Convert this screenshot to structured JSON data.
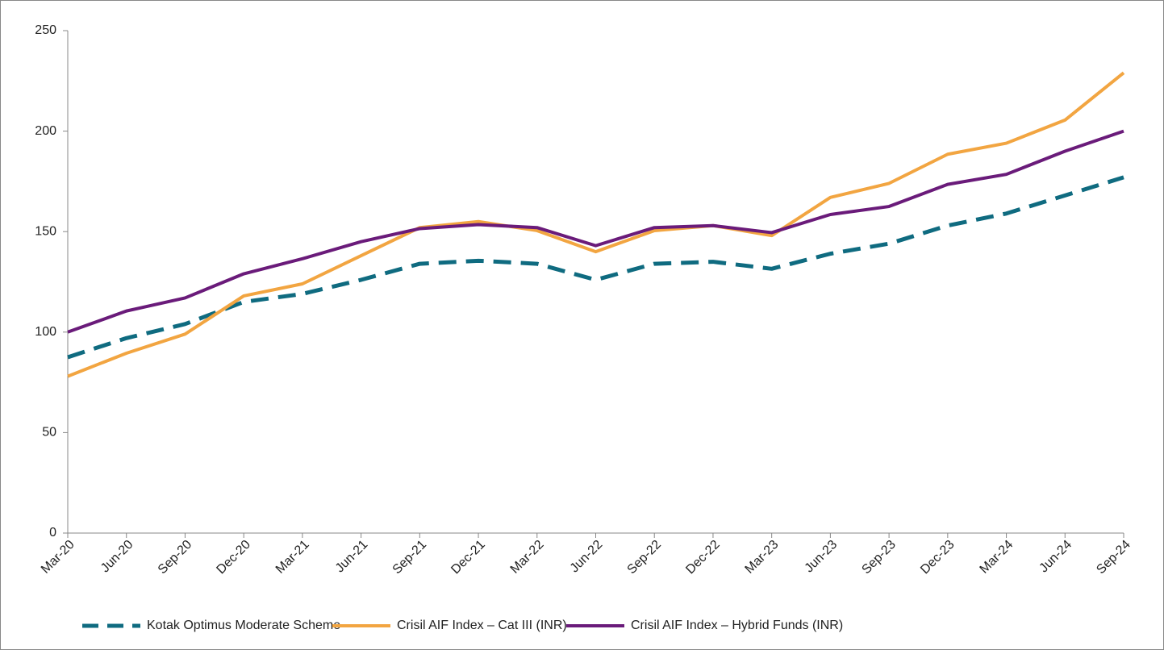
{
  "chart_data": {
    "type": "line",
    "categories": [
      "Mar-20",
      "Jun-20",
      "Sep-20",
      "Dec-20",
      "Mar-21",
      "Jun-21",
      "Sep-21",
      "Dec-21",
      "Mar-22",
      "Jun-22",
      "Sep-22",
      "Dec-22",
      "Mar-23",
      "Jun-23",
      "Sep-23",
      "Dec-23",
      "Mar-24",
      "Jun-24",
      "Sep-24"
    ],
    "series": [
      {
        "name": "Kotak Optimus Moderate Scheme",
        "color": "#0f6b80",
        "dashed": true,
        "values": [
          87.5,
          97,
          104,
          115,
          119,
          126,
          134,
          135.5,
          134,
          126,
          134,
          135,
          131.5,
          139,
          144,
          153,
          159,
          168,
          177
        ]
      },
      {
        "name": "Crisil AIF Index – Cat III (INR)",
        "color": "#f2a541",
        "dashed": false,
        "values": [
          78,
          89.5,
          99,
          118,
          124,
          138,
          152,
          155,
          150.5,
          140,
          150.5,
          153,
          148,
          167,
          174,
          188.5,
          194,
          205.5,
          229
        ]
      },
      {
        "name": "Crisil AIF Index – Hybrid Funds (INR)",
        "color": "#6a1b7a",
        "dashed": false,
        "values": [
          100,
          110.5,
          117,
          129,
          136.5,
          145,
          151.5,
          153.5,
          152,
          143,
          152,
          153,
          149.5,
          158.5,
          162.5,
          173.5,
          178.5,
          190,
          200
        ]
      }
    ],
    "ylim": [
      0,
      250
    ],
    "yticks": [
      0,
      50,
      100,
      150,
      200,
      250
    ],
    "grid": false
  }
}
